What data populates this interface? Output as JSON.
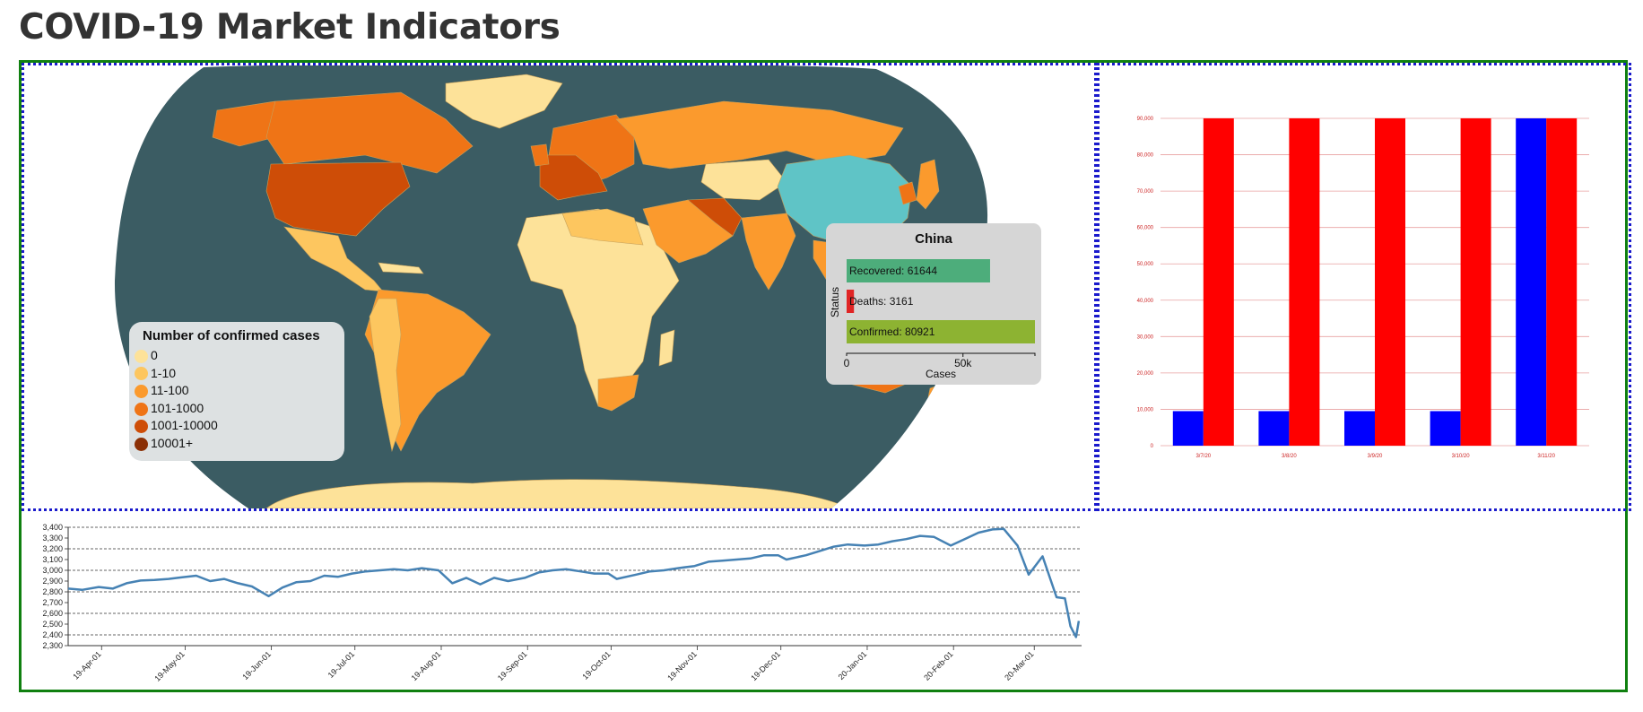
{
  "page": {
    "title": "COVID-19 Market Indicators"
  },
  "colors": {
    "ocean": "#3b5c63",
    "highlight": "#5fc4c6",
    "recovered": "#4dad7b",
    "deaths": "#e02525",
    "confirmed": "#8db332",
    "bar_blue": "#0000ff",
    "bar_red": "#ff0000",
    "line": "#4682b4"
  },
  "map": {
    "legend": {
      "title": "Number of confirmed cases",
      "items": [
        {
          "label": "0",
          "color": "#fde299"
        },
        {
          "label": "1-10",
          "color": "#fdc65f"
        },
        {
          "label": "11-100",
          "color": "#fb9a2d"
        },
        {
          "label": "101-1000",
          "color": "#ef7416"
        },
        {
          "label": "1001-10000",
          "color": "#ce4d07"
        },
        {
          "label": "10001+",
          "color": "#8b3006"
        }
      ]
    },
    "tooltip": {
      "country": "China",
      "y_label": "Status",
      "x_label": "Cases",
      "x_ticks": [
        "0",
        "50k"
      ],
      "bars": [
        {
          "label": "Recovered: 61644",
          "value": 61644
        },
        {
          "label": "Deaths: 3161",
          "value": 3161
        },
        {
          "label": "Confirmed: 80921",
          "value": 80921
        }
      ]
    }
  },
  "chart_data": [
    {
      "type": "bar",
      "categories": [
        "3/7/20",
        "3/8/20",
        "3/9/20",
        "3/10/20",
        "3/11/20"
      ],
      "series": [
        {
          "values": [
            9500,
            9500,
            9500,
            9500,
            90000
          ]
        },
        {
          "values": [
            90000,
            90000,
            90000,
            90000,
            90000
          ]
        }
      ],
      "ylim": [
        0,
        90000
      ],
      "yticks": [
        "0",
        "10,000",
        "20,000",
        "30,000",
        "40,000",
        "50,000",
        "60,000",
        "70,000",
        "80,000",
        "90,000"
      ],
      "grid": true
    },
    {
      "type": "line",
      "ylim": [
        2300,
        3400
      ],
      "yticks": [
        "2,300",
        "2,400",
        "2,500",
        "2,600",
        "2,700",
        "2,800",
        "2,900",
        "3,000",
        "3,100",
        "3,200",
        "3,300",
        "3,400"
      ],
      "xticks": [
        "19-Apr-01",
        "19-May-01",
        "19-Jun-01",
        "19-Jul-01",
        "19-Aug-01",
        "19-Sep-01",
        "19-Oct-01",
        "19-Nov-01",
        "19-Dec-01",
        "20-Jan-01",
        "20-Feb-01",
        "20-Mar-01"
      ],
      "points": [
        [
          "2019-03-20",
          2830
        ],
        [
          "2019-03-25",
          2818
        ],
        [
          "2019-03-31",
          2845
        ],
        [
          "2019-04-05",
          2830
        ],
        [
          "2019-04-10",
          2880
        ],
        [
          "2019-04-15",
          2905
        ],
        [
          "2019-04-20",
          2910
        ],
        [
          "2019-04-25",
          2920
        ],
        [
          "2019-04-30",
          2935
        ],
        [
          "2019-05-05",
          2950
        ],
        [
          "2019-05-10",
          2900
        ],
        [
          "2019-05-15",
          2920
        ],
        [
          "2019-05-20",
          2880
        ],
        [
          "2019-05-25",
          2850
        ],
        [
          "2019-05-31",
          2760
        ],
        [
          "2019-06-05",
          2840
        ],
        [
          "2019-06-10",
          2890
        ],
        [
          "2019-06-15",
          2900
        ],
        [
          "2019-06-20",
          2950
        ],
        [
          "2019-06-25",
          2940
        ],
        [
          "2019-06-30",
          2970
        ],
        [
          "2019-07-05",
          2990
        ],
        [
          "2019-07-10",
          3000
        ],
        [
          "2019-07-15",
          3010
        ],
        [
          "2019-07-20",
          3000
        ],
        [
          "2019-07-25",
          3020
        ],
        [
          "2019-07-31",
          3000
        ],
        [
          "2019-08-05",
          2880
        ],
        [
          "2019-08-10",
          2930
        ],
        [
          "2019-08-15",
          2870
        ],
        [
          "2019-08-20",
          2930
        ],
        [
          "2019-08-25",
          2900
        ],
        [
          "2019-08-31",
          2930
        ],
        [
          "2019-09-05",
          2980
        ],
        [
          "2019-09-10",
          3000
        ],
        [
          "2019-09-15",
          3010
        ],
        [
          "2019-09-20",
          2990
        ],
        [
          "2019-09-25",
          2970
        ],
        [
          "2019-09-30",
          2970
        ],
        [
          "2019-10-03",
          2920
        ],
        [
          "2019-10-10",
          2960
        ],
        [
          "2019-10-15",
          2990
        ],
        [
          "2019-10-20",
          3000
        ],
        [
          "2019-10-25",
          3020
        ],
        [
          "2019-10-31",
          3040
        ],
        [
          "2019-11-05",
          3080
        ],
        [
          "2019-11-10",
          3090
        ],
        [
          "2019-11-15",
          3100
        ],
        [
          "2019-11-20",
          3110
        ],
        [
          "2019-11-25",
          3140
        ],
        [
          "2019-11-30",
          3140
        ],
        [
          "2019-12-03",
          3100
        ],
        [
          "2019-12-10",
          3140
        ],
        [
          "2019-12-15",
          3180
        ],
        [
          "2019-12-20",
          3220
        ],
        [
          "2019-12-25",
          3240
        ],
        [
          "2019-12-31",
          3230
        ],
        [
          "2020-01-05",
          3240
        ],
        [
          "2020-01-10",
          3270
        ],
        [
          "2020-01-15",
          3290
        ],
        [
          "2020-01-20",
          3320
        ],
        [
          "2020-01-25",
          3310
        ],
        [
          "2020-01-31",
          3230
        ],
        [
          "2020-02-05",
          3290
        ],
        [
          "2020-02-10",
          3350
        ],
        [
          "2020-02-15",
          3380
        ],
        [
          "2020-02-19",
          3386
        ],
        [
          "2020-02-24",
          3230
        ],
        [
          "2020-02-28",
          2960
        ],
        [
          "2020-03-04",
          3130
        ],
        [
          "2020-03-09",
          2750
        ],
        [
          "2020-03-12",
          2740
        ],
        [
          "2020-03-14",
          2480
        ],
        [
          "2020-03-16",
          2380
        ],
        [
          "2020-03-17",
          2530
        ]
      ]
    }
  ]
}
